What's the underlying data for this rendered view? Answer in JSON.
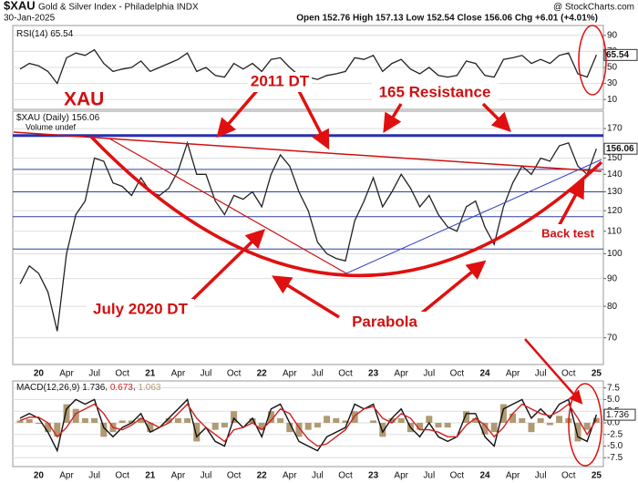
{
  "header": {
    "symbol": "$XAU",
    "name": "Gold & Silver Index - Philadelphia INDX",
    "source": "@ StockCharts.com",
    "date": "30-Jan-2025",
    "quote": "Open 152.76 High 157.13 Low 152.54 Close 156.06 Chg +6.01 (+4.01%)"
  },
  "annotations": {
    "xau": "XAU",
    "dt2011": "2011 DT",
    "resistance": "165 Resistance",
    "dt2020": "July 2020 DT",
    "parabola": "Parabola",
    "backtest": "Back test"
  },
  "chart_data": [
    {
      "type": "line",
      "title": "RSI(14)",
      "color": "#222222",
      "ylim": [
        0,
        100
      ],
      "yticks": [
        10,
        30,
        50,
        70,
        90
      ],
      "grid": true,
      "values": [
        48,
        55,
        52,
        45,
        30,
        62,
        68,
        65,
        72,
        55,
        45,
        48,
        50,
        58,
        45,
        50,
        55,
        60,
        68,
        45,
        50,
        40,
        38,
        55,
        48,
        55,
        45,
        60,
        62,
        50,
        40,
        38,
        35,
        40,
        42,
        45,
        62,
        60,
        65,
        45,
        55,
        60,
        48,
        42,
        50,
        40,
        38,
        40,
        58,
        55,
        40,
        38,
        60,
        62,
        65,
        55,
        60,
        55,
        65,
        68,
        42,
        38,
        65.54
      ]
    },
    {
      "type": "line",
      "title": "$XAU (Daily)",
      "legend": "Volume undef",
      "color": "#222222",
      "log_scale": true,
      "ylim": [
        62.5,
        183
      ],
      "yticks": [
        70,
        80,
        90,
        100,
        110,
        120,
        130,
        140,
        150,
        170
      ],
      "grid": true,
      "levels": [
        165,
        143,
        130,
        117,
        102
      ],
      "categories": [
        null,
        null,
        "20",
        null,
        null,
        "Apr",
        null,
        null,
        "Jul",
        null,
        null,
        "Oct",
        null,
        null,
        "21",
        null,
        null,
        "Apr",
        null,
        null,
        "Jul",
        null,
        null,
        "Oct",
        null,
        null,
        "22",
        null,
        null,
        "Apr",
        null,
        null,
        "Jul",
        null,
        null,
        "Oct",
        null,
        null,
        "23",
        null,
        null,
        "Apr",
        null,
        null,
        "Jul",
        null,
        null,
        "Oct",
        null,
        null,
        "24",
        null,
        null,
        "Apr",
        null,
        null,
        "Jul",
        null,
        null,
        "Oct",
        null,
        null,
        "25"
      ],
      "values": [
        88,
        95,
        92,
        85,
        72,
        100,
        118,
        125,
        150,
        148,
        135,
        133,
        128,
        138,
        130,
        128,
        132,
        142,
        160,
        140,
        140,
        125,
        118,
        128,
        126,
        130,
        122,
        140,
        152,
        145,
        130,
        120,
        105,
        100,
        98,
        97,
        115,
        125,
        138,
        122,
        130,
        140,
        132,
        122,
        128,
        118,
        112,
        110,
        122,
        125,
        112,
        104,
        122,
        135,
        145,
        140,
        150,
        148,
        158,
        160,
        145,
        140,
        156.06
      ]
    },
    {
      "type": "line",
      "title": "MACD(12,26,9)",
      "ylim": [
        -9.4,
        9
      ],
      "grid": true,
      "yticks": [
        {
          "value": 7.5,
          "label": "7.5"
        },
        {
          "value": 5,
          "label": "5.0"
        },
        {
          "value": 2.5,
          "label": "2.5"
        },
        {
          "value": 0,
          "label": "0.0"
        },
        {
          "value": -2.5,
          "label": "-2.5"
        },
        {
          "value": -5,
          "label": "-5.0"
        },
        {
          "value": -7.5,
          "label": "-7.5"
        }
      ],
      "series": [
        {
          "type": "bar",
          "color": "#b09a72",
          "values": [
            0.5,
            0.8,
            -0.2,
            -2,
            -3,
            4,
            3,
            1,
            1,
            -3,
            -2,
            0.5,
            0.5,
            1,
            -2,
            0,
            1,
            1,
            1,
            -4,
            0,
            -1.5,
            -1,
            2.5,
            0,
            1,
            -1.5,
            2.5,
            1,
            -2,
            -3,
            -1.5,
            -1,
            1.5,
            1,
            0.5,
            2.5,
            0,
            0.5,
            -3,
            1,
            1,
            -2,
            -1.5,
            1.5,
            -1,
            -1,
            0,
            2.5,
            1,
            -2.5,
            -2,
            4,
            2,
            1,
            -2,
            1,
            -0.5,
            1.5,
            1,
            -4,
            -1.5,
            1.063
          ]
        },
        {
          "type": "line",
          "color": "#111111",
          "values": [
            1,
            2,
            1,
            -2,
            -6,
            3,
            5,
            4,
            5,
            -1,
            -3,
            -1,
            0,
            2,
            -2,
            -1,
            1,
            3,
            5,
            -3,
            -1,
            -4,
            -5,
            1,
            -1,
            1,
            -3,
            3,
            4,
            0,
            -4,
            -5,
            -6,
            -3,
            -2,
            -1,
            4,
            3,
            4,
            -2,
            1,
            3,
            -1,
            -3,
            0,
            -3,
            -4,
            -3,
            2,
            2,
            -3,
            -5,
            3,
            4,
            5,
            1,
            3,
            1,
            4,
            5,
            -3,
            -4,
            1.736
          ]
        },
        {
          "type": "line",
          "color": "#d02020",
          "values": [
            0.5,
            1.2,
            1.2,
            0,
            -3,
            -1,
            2,
            3,
            4,
            2,
            -1,
            -1.5,
            -0.5,
            1,
            0,
            -1,
            0,
            2,
            4,
            1,
            -1,
            -2.5,
            -4,
            -1.5,
            -1,
            0,
            -1.5,
            0.5,
            3,
            2,
            -1,
            -3.5,
            -5,
            -4.5,
            -3,
            -1.5,
            1.5,
            3,
            3.5,
            1,
            0,
            2,
            1,
            -1.5,
            -1.5,
            -2,
            -3,
            -3,
            -0.5,
            1,
            -0.5,
            -3,
            -1,
            2,
            4,
            3,
            2,
            1.5,
            2.5,
            4,
            1,
            -2.5,
            0.673
          ]
        }
      ]
    }
  ]
}
